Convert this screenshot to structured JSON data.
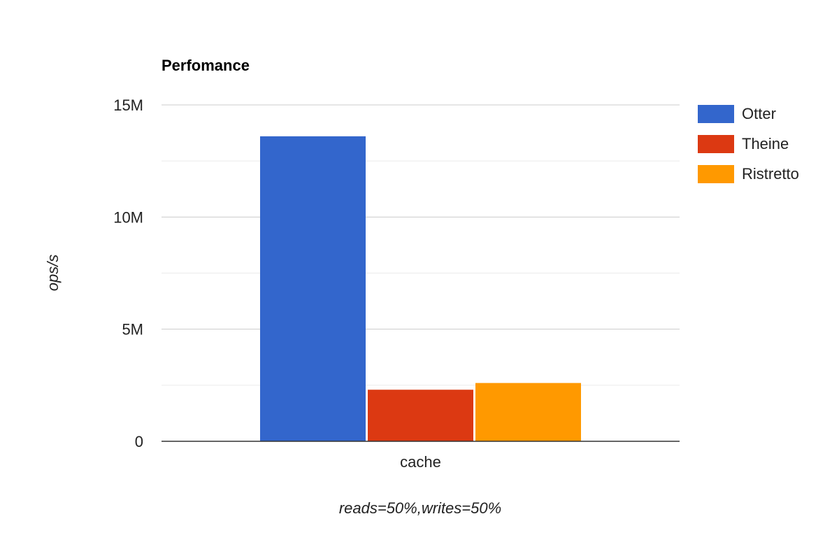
{
  "chart_data": {
    "type": "bar",
    "title": "Perfomance",
    "categories": [
      "cache"
    ],
    "series": [
      {
        "name": "Otter",
        "values": [
          13600000
        ],
        "color": "#3366CC"
      },
      {
        "name": "Theine",
        "values": [
          2300000
        ],
        "color": "#DC3912"
      },
      {
        "name": "Ristretto",
        "values": [
          2600000
        ],
        "color": "#FF9900"
      }
    ],
    "xlabel": "reads=50%,writes=50%",
    "ylabel": "ops/s",
    "ylim": [
      0,
      15000000
    ],
    "yticks": [
      0,
      5000000,
      10000000,
      15000000
    ],
    "ytick_labels": [
      "0",
      "5M",
      "10M",
      "15M"
    ],
    "minor_gridlines": [
      2500000,
      7500000,
      12500000
    ],
    "grid": true,
    "legend_position": "right"
  }
}
